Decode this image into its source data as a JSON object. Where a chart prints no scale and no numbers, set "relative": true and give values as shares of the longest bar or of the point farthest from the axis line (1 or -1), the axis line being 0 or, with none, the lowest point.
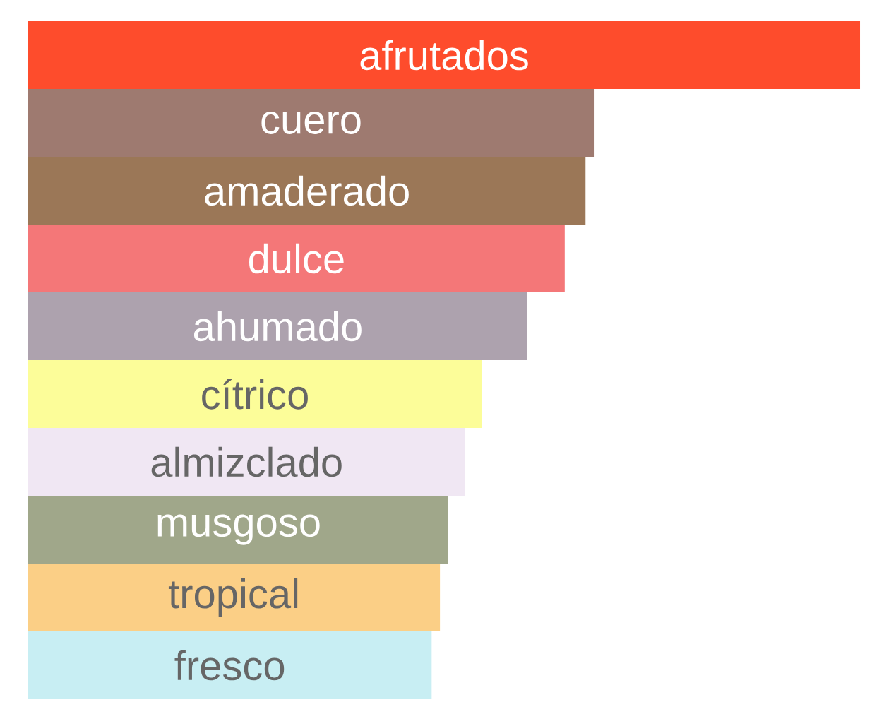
{
  "chart_data": {
    "type": "bar",
    "orientation": "horizontal",
    "relative": true,
    "categories": [
      "afrutados",
      "cuero",
      "amaderado",
      "dulce",
      "ahumado",
      "cítrico",
      "almizclado",
      "musgoso",
      "tropical",
      "fresco"
    ],
    "values": [
      1,
      0.68,
      0.67,
      0.645,
      0.6,
      0.545,
      0.525,
      0.505,
      0.495,
      0.485
    ],
    "colors": [
      "#fe4c2c",
      "#9e7a70",
      "#9b7757",
      "#f47778",
      "#ada2ae",
      "#fcfd99",
      "#f0e7f3",
      "#a0a78a",
      "#fbcf86",
      "#c8eef3"
    ]
  }
}
